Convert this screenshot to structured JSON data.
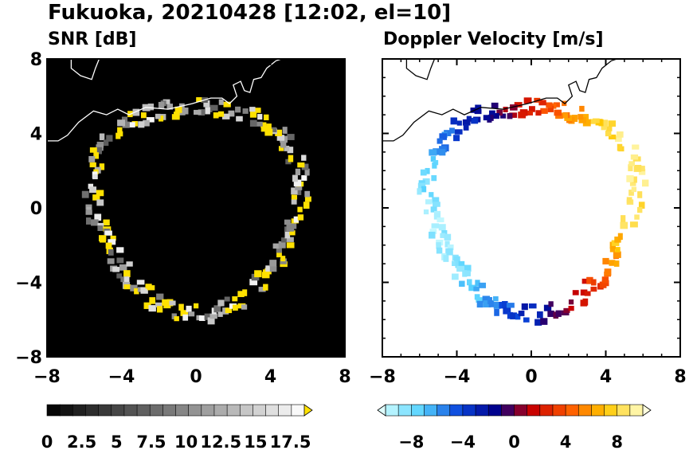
{
  "figure_title": "Fukuoka, 20210428 [12:02, el=10]",
  "chart_data": [
    {
      "type": "heatmap",
      "title": "SNR [dB]",
      "xlim": [
        -8,
        8
      ],
      "ylim": [
        -8,
        8
      ],
      "x_ticks": [
        "−8",
        "−4",
        "0",
        "4",
        "8"
      ],
      "y_ticks": [
        "8",
        "4",
        "0",
        "−4",
        "−8"
      ],
      "background_color": "#000000",
      "colorbar": {
        "min": 0,
        "max": 18.5,
        "steps": 20,
        "ticks": [
          0,
          2.5,
          5,
          7.5,
          10,
          12.5,
          15,
          17.5
        ],
        "tick_labels": [
          "0",
          "2.5",
          "5",
          "7.5",
          "10",
          "12.5",
          "15",
          "17.5"
        ],
        "colors": [
          "#000000",
          "#ffffff"
        ],
        "over_color": "#ffe100"
      },
      "grid": false
    },
    {
      "type": "heatmap",
      "title": "Doppler Velocity [m/s]",
      "xlim": [
        -8,
        8
      ],
      "ylim": [
        -8,
        8
      ],
      "x_ticks": [
        "−8",
        "−4",
        "0",
        "4",
        "8"
      ],
      "y_ticks": [
        "8",
        "4",
        "0",
        "−4",
        "−8"
      ],
      "background_color": "#ffffff",
      "colorbar": {
        "min": -10,
        "max": 10,
        "steps": 20,
        "ticks": [
          -8,
          -4,
          0,
          4,
          8
        ],
        "tick_labels": [
          "−8",
          "−4",
          "0",
          "4",
          "8"
        ],
        "colors": [
          "#c8faff",
          "#55d2ff",
          "#0a46dc",
          "#00008c",
          "#c80000",
          "#ff5a00",
          "#ffc800",
          "#ffffc8"
        ],
        "under_color": "#e0ffff",
        "over_color": "#ffffe0"
      },
      "grid": false
    }
  ]
}
